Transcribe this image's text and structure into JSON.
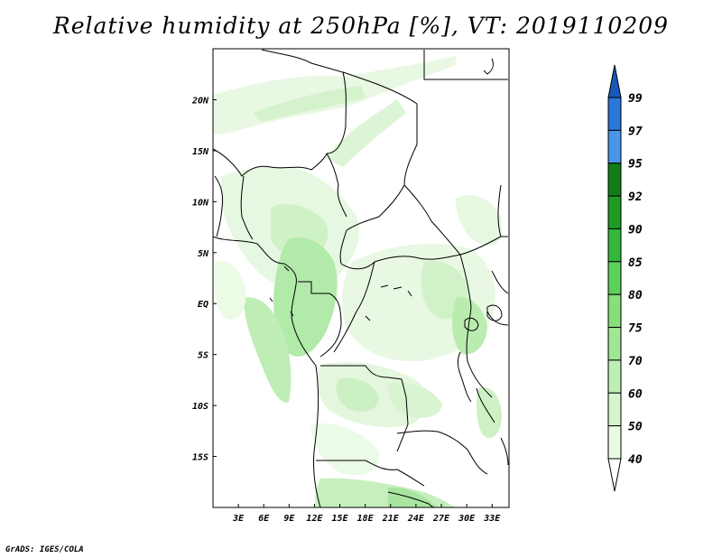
{
  "title": "Relative humidity at 250hPa [%], VT: 2019110209",
  "footer": "GrADS: IGES/COLA",
  "map": {
    "lon_range": [
      0,
      35
    ],
    "lat_range": [
      -20,
      25
    ],
    "lon_ticks": [
      "3E",
      "6E",
      "9E",
      "12E",
      "15E",
      "18E",
      "21E",
      "24E",
      "27E",
      "30E",
      "33E"
    ],
    "lat_ticks": [
      "20N",
      "15N",
      "10N",
      "5N",
      "EQ",
      "5S",
      "10S",
      "15S"
    ]
  },
  "colorbar": {
    "levels": [
      "40",
      "50",
      "60",
      "70",
      "75",
      "80",
      "85",
      "90",
      "92",
      "95",
      "97",
      "99"
    ],
    "colors": [
      "#ffffff",
      "#e9fbe4",
      "#d6f5cf",
      "#bdeeb3",
      "#a0e694",
      "#86df79",
      "#5cd05a",
      "#33b83a",
      "#1f9c24",
      "#137d17",
      "#4796ea",
      "#2b78dc",
      "#1857b8"
    ]
  }
}
